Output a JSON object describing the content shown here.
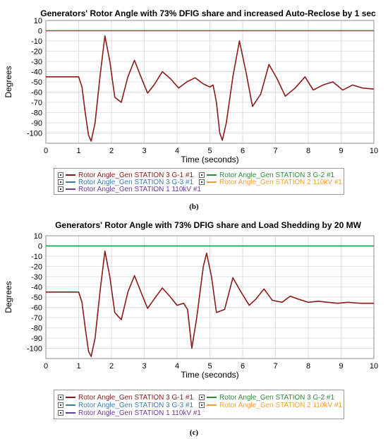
{
  "chart_data": [
    {
      "type": "line",
      "title": "Generators' Rotor Angle with 73% DFIG share and increased Auto-Reclose by 1 sec",
      "xlabel": "Time (seconds)",
      "ylabel": "Degrees",
      "xlim": [
        0,
        10
      ],
      "ylim": [
        -110,
        10
      ],
      "xticks": [
        "0",
        "1",
        "2",
        "3",
        "4",
        "5",
        "6",
        "7",
        "8",
        "9",
        "10"
      ],
      "yticks": [
        "10",
        "0",
        "-10",
        "-20",
        "-30",
        "-40",
        "-50",
        "-60",
        "-70",
        "-80",
        "-90",
        "-100"
      ],
      "grid": true,
      "caption": "(b)",
      "series": [
        {
          "name": "Rotor Angle_Gen STATION 3 G-1 #1",
          "color": "#8b1a1a",
          "x": [
            0,
            1.0,
            1.1,
            1.2,
            1.3,
            1.38,
            1.5,
            1.65,
            1.8,
            1.95,
            2.1,
            2.3,
            2.5,
            2.7,
            2.9,
            3.1,
            3.3,
            3.55,
            3.8,
            4.05,
            4.3,
            4.55,
            4.8,
            5.0,
            5.1,
            5.2,
            5.3,
            5.38,
            5.5,
            5.7,
            5.9,
            6.1,
            6.3,
            6.55,
            6.8,
            7.05,
            7.3,
            7.6,
            7.9,
            8.15,
            8.45,
            8.75,
            9.05,
            9.35,
            9.65,
            10.0
          ],
          "y": [
            -45,
            -45,
            -55,
            -80,
            -102,
            -108,
            -90,
            -45,
            -5,
            -30,
            -65,
            -70,
            -45,
            -29,
            -45,
            -61,
            -53,
            -40,
            -47,
            -56,
            -50,
            -46,
            -52,
            -55,
            -53,
            -70,
            -100,
            -107,
            -90,
            -45,
            -10,
            -40,
            -74,
            -62,
            -33,
            -47,
            -64,
            -56,
            -45,
            -58,
            -53,
            -50,
            -58,
            -53,
            -56,
            -57
          ]
        },
        {
          "name": "Rotor Angle_Gen STATION 3 G-2 #1",
          "color": "#2e8b3a",
          "x": [
            0,
            10
          ],
          "y": [
            0,
            0
          ]
        },
        {
          "name": "Rotor Angle_Gen STATION 3 G-3 #1",
          "color": "#3a7fb0",
          "x": [
            0,
            10
          ],
          "y": [
            0,
            0
          ]
        },
        {
          "name": "Rotor Angle_Gen STATION 2 110kV #1",
          "color": "#f0a030",
          "x": [
            0,
            10
          ],
          "y": [
            0,
            0
          ]
        },
        {
          "name": "Rotor Angle_Gen STATION 1 110kV #1",
          "color": "#6a3d9a",
          "x": [
            0,
            10
          ],
          "y": [
            0,
            0
          ]
        }
      ]
    },
    {
      "type": "line",
      "title": "Generators' Rotor Angle with 73% DFIG share and Load Shedding by 20 MW",
      "xlabel": "Time (seconds)",
      "ylabel": "Degrees",
      "xlim": [
        0,
        10
      ],
      "ylim": [
        -110,
        10
      ],
      "xticks": [
        "0",
        "1",
        "2",
        "3",
        "4",
        "5",
        "6",
        "7",
        "8",
        "9",
        "10"
      ],
      "yticks": [
        "10",
        "0",
        "-10",
        "-20",
        "-30",
        "-40",
        "-50",
        "-60",
        "-70",
        "-80",
        "-90",
        "-100"
      ],
      "grid": true,
      "caption": "(c)",
      "series": [
        {
          "name": "Rotor Angle_Gen STATION 3 G-1 #1",
          "color": "#8b1a1a",
          "x": [
            0,
            1.0,
            1.1,
            1.2,
            1.3,
            1.38,
            1.5,
            1.65,
            1.8,
            1.95,
            2.1,
            2.3,
            2.5,
            2.7,
            2.9,
            3.1,
            3.3,
            3.55,
            3.8,
            4.0,
            4.2,
            4.32,
            4.45,
            4.6,
            4.8,
            4.9,
            5.05,
            5.2,
            5.45,
            5.7,
            5.95,
            6.2,
            6.4,
            6.65,
            6.9,
            7.2,
            7.45,
            7.7,
            8.0,
            8.3,
            8.6,
            8.9,
            9.2,
            9.6,
            10.0
          ],
          "y": [
            -45,
            -45,
            -55,
            -80,
            -103,
            -108,
            -90,
            -45,
            -5,
            -30,
            -65,
            -72,
            -45,
            -29,
            -45,
            -61,
            -52,
            -41,
            -50,
            -58,
            -56,
            -62,
            -100,
            -70,
            -20,
            -7,
            -30,
            -65,
            -62,
            -31,
            -45,
            -58,
            -52,
            -42,
            -53,
            -55,
            -49,
            -52,
            -55,
            -54,
            -55,
            -56,
            -55,
            -56,
            -56
          ]
        },
        {
          "name": "Rotor Angle_Gen STATION 3 G-2 #1",
          "color": "#2e8b3a",
          "x": [
            0,
            10
          ],
          "y": [
            0,
            0
          ]
        },
        {
          "name": "Rotor Angle_Gen STATION 3 G-3 #1",
          "color": "#3a7fb0",
          "x": [
            0,
            10
          ],
          "y": [
            0,
            0
          ]
        },
        {
          "name": "Rotor Angle_Gen STATION 2 110kV #1",
          "color": "#f0a030",
          "x": [
            0,
            10
          ],
          "y": [
            0,
            0
          ]
        },
        {
          "name": "Rotor Angle_Gen STATION 1 110kV #1",
          "color": "#6a3d9a",
          "x": [
            0,
            10
          ],
          "y": [
            0,
            0
          ]
        }
      ]
    }
  ]
}
